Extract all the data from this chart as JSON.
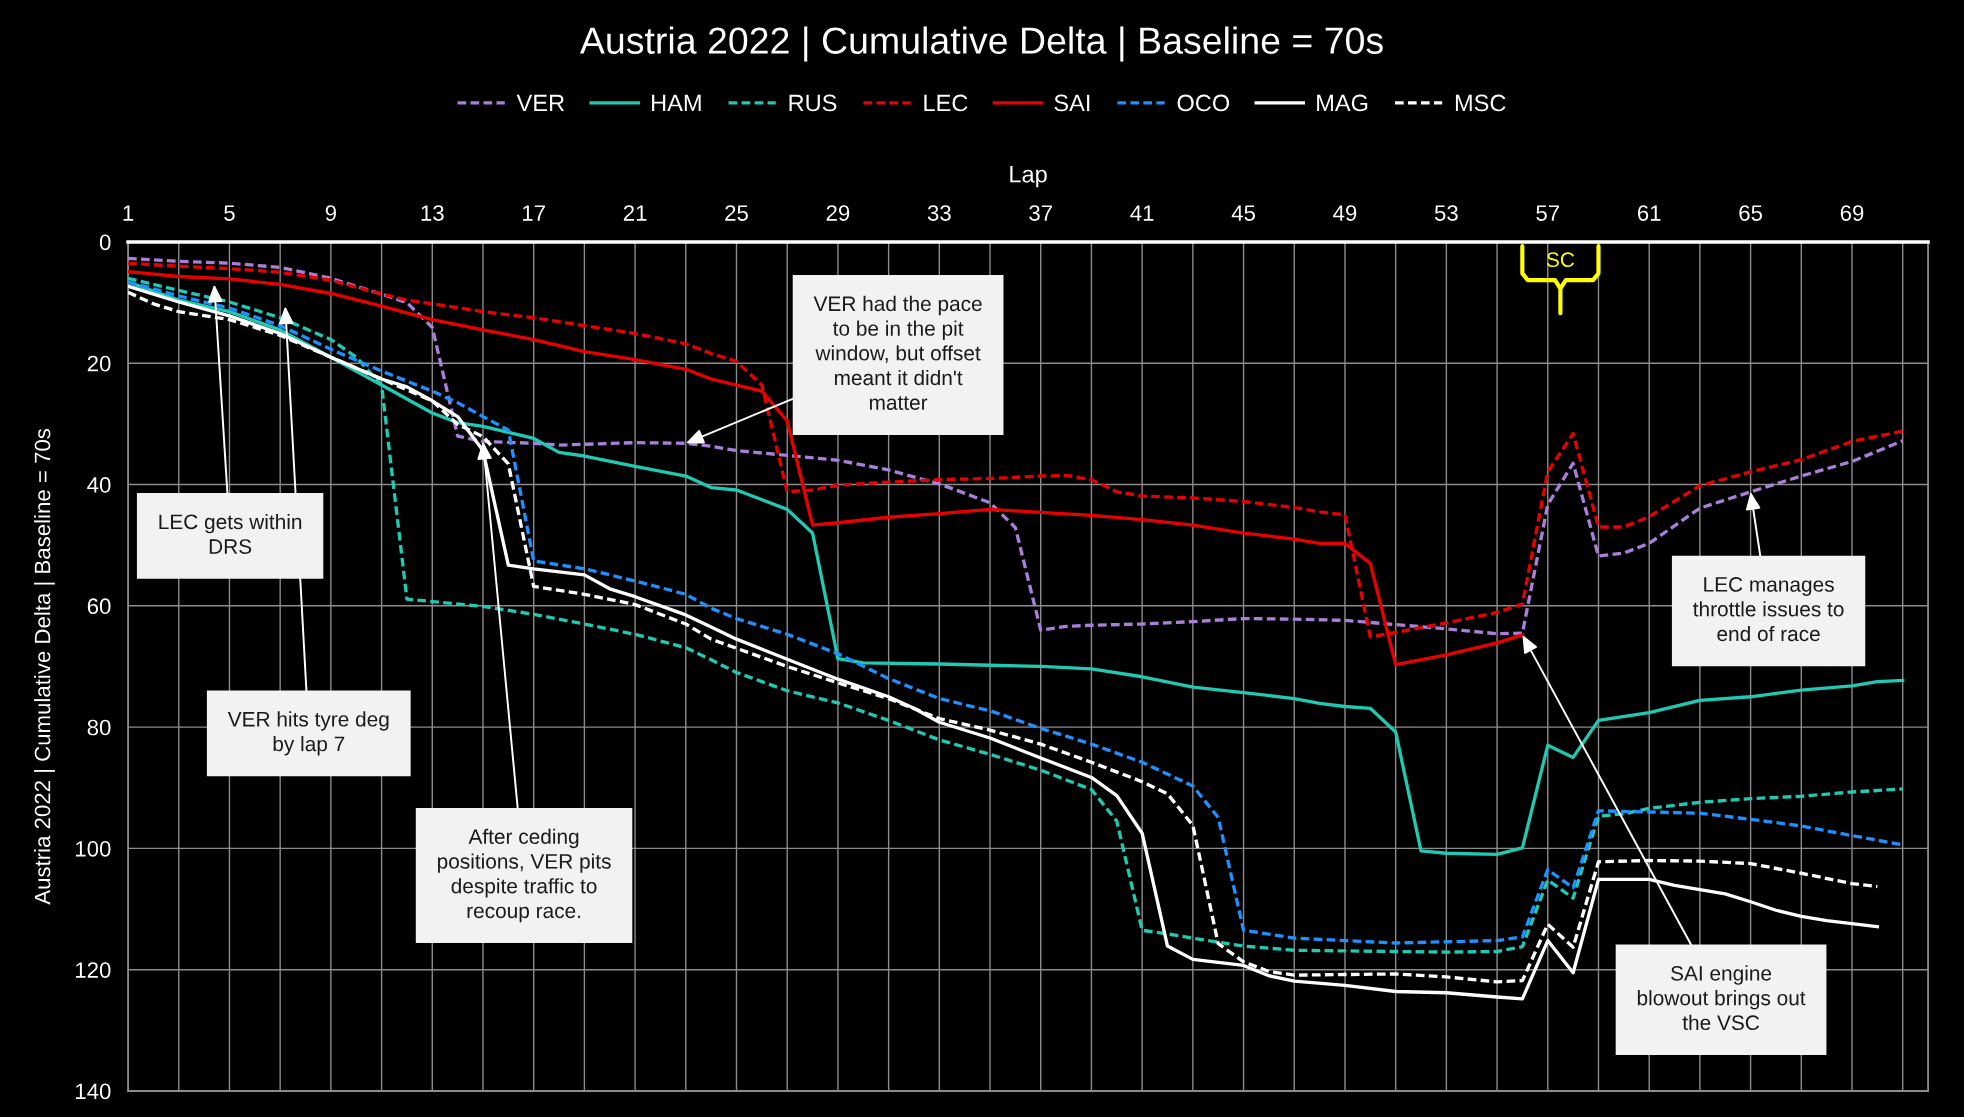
{
  "chart_data": {
    "type": "line",
    "title": "Austria 2022 | Cumulative Delta | Baseline = 70s",
    "xlabel": "Lap",
    "ylabel": "Austria 2022 | Cumulative Delta | Baseline = 70s",
    "xlim": [
      1,
      72
    ],
    "xticks": [
      1,
      {
        "value": 3,
        "label": null
      },
      5,
      {
        "value": 7,
        "label": null
      },
      9,
      {
        "value": 11,
        "label": null
      },
      13,
      {
        "value": 15,
        "label": null
      },
      17,
      {
        "value": 19,
        "label": null
      },
      21,
      {
        "value": 23,
        "label": null
      },
      25,
      {
        "value": 27,
        "label": null
      },
      29,
      {
        "value": 31,
        "label": null
      },
      33,
      {
        "value": 35,
        "label": null
      },
      37,
      {
        "value": 39,
        "label": null
      },
      41,
      {
        "value": 43,
        "label": null
      },
      45,
      {
        "value": 47,
        "label": null
      },
      49,
      {
        "value": 51,
        "label": null
      },
      53,
      {
        "value": 55,
        "label": null
      },
      57,
      {
        "value": 59,
        "label": null
      },
      61,
      {
        "value": 63,
        "label": null
      },
      65,
      {
        "value": 67,
        "label": null
      },
      69,
      {
        "value": 71,
        "label": null
      }
    ],
    "ylim": [
      140,
      0
    ],
    "yticks": [
      0,
      20,
      40,
      60,
      80,
      100,
      120,
      140
    ],
    "grid": true,
    "legend": "top",
    "series": [
      {
        "name": "VER",
        "color": "#a97fd9",
        "line_style": "dashed",
        "x": [
          1,
          3,
          5,
          7,
          9,
          11,
          12,
          13,
          14,
          15,
          17,
          18,
          21,
          23,
          24,
          25,
          27,
          29,
          31,
          33,
          35,
          36,
          37,
          38,
          39,
          41,
          43,
          45,
          47,
          49,
          51,
          53,
          55,
          56,
          57,
          58,
          59,
          60,
          61,
          63,
          65,
          67,
          69,
          71
        ],
        "values": [
          2.7,
          3.2,
          3.5,
          4.2,
          6.0,
          8.6,
          10.0,
          14.1,
          32.0,
          32.9,
          33.2,
          33.5,
          33.1,
          33.2,
          33.7,
          34.4,
          35.2,
          36.0,
          37.6,
          39.9,
          43.0,
          47.1,
          64.0,
          63.4,
          63.2,
          63.0,
          62.6,
          62.1,
          62.2,
          62.4,
          63.1,
          63.8,
          64.6,
          64.5,
          43.3,
          36.5,
          51.8,
          51.3,
          49.7,
          43.9,
          41.2,
          38.6,
          36.2,
          32.8
        ]
      },
      {
        "name": "HAM",
        "color": "#20c9b3",
        "line_style": "solid",
        "x": [
          1,
          3,
          5,
          7,
          9,
          11,
          13,
          14,
          15,
          17,
          18,
          19,
          21,
          23,
          24,
          25,
          27,
          28,
          29,
          30,
          33,
          35,
          37,
          39,
          41,
          43,
          45,
          47,
          48,
          49,
          50,
          51,
          52,
          53,
          55,
          56,
          57,
          58,
          59,
          61,
          63,
          65,
          67,
          69,
          70,
          71
        ],
        "values": [
          6.6,
          9.6,
          11.5,
          14.5,
          19.0,
          23.6,
          28.2,
          29.8,
          30.4,
          32.4,
          34.7,
          35.3,
          37.0,
          38.6,
          40.5,
          40.9,
          44.1,
          48.0,
          68.7,
          69.4,
          69.6,
          69.8,
          70.0,
          70.4,
          71.7,
          73.4,
          74.3,
          75.3,
          76.1,
          76.6,
          76.9,
          80.8,
          100.4,
          100.8,
          101.0,
          99.9,
          83.0,
          85.0,
          78.9,
          77.6,
          75.6,
          75.0,
          73.9,
          73.2,
          72.5,
          72.3
        ]
      },
      {
        "name": "RUS",
        "color": "#20c9b3",
        "line_style": "dashed",
        "x": [
          1,
          3,
          5,
          7,
          9,
          10,
          11,
          12,
          13,
          15,
          17,
          19,
          21,
          23,
          24,
          25,
          27,
          29,
          31,
          33,
          35,
          37,
          39,
          40,
          41,
          42,
          43,
          45,
          47,
          49,
          51,
          53,
          55,
          56,
          57,
          58,
          59,
          60,
          61,
          63,
          65,
          67,
          69,
          71
        ],
        "values": [
          6.0,
          8.0,
          9.9,
          12.5,
          16.1,
          19.0,
          23.6,
          58.9,
          59.3,
          60.1,
          61.4,
          63.0,
          64.7,
          66.9,
          68.9,
          71.0,
          74.0,
          76.0,
          78.9,
          82.1,
          84.5,
          87.1,
          90.3,
          95.5,
          113.5,
          114.1,
          114.8,
          116.1,
          116.8,
          116.9,
          117.0,
          117.1,
          117.0,
          116.2,
          105.2,
          108.2,
          94.7,
          94.3,
          93.4,
          92.4,
          91.8,
          91.4,
          90.7,
          90.2
        ]
      },
      {
        "name": "LEC",
        "color": "#e60000",
        "line_style": "dashed",
        "x": [
          1,
          3,
          5,
          7,
          9,
          11,
          12,
          13,
          15,
          17,
          19,
          21,
          23,
          24,
          25,
          26,
          27,
          28,
          29,
          31,
          33,
          35,
          37,
          38,
          39,
          40,
          41,
          43,
          45,
          47,
          48,
          49,
          50,
          51,
          53,
          55,
          56,
          57,
          58,
          59,
          60,
          61,
          63,
          65,
          67,
          69,
          71
        ],
        "values": [
          3.5,
          4.0,
          4.4,
          5.0,
          6.3,
          8.6,
          9.6,
          10.2,
          11.5,
          12.5,
          13.8,
          15.1,
          16.8,
          18.4,
          19.7,
          23.6,
          41.2,
          40.9,
          40.1,
          39.6,
          39.2,
          39.0,
          38.6,
          38.5,
          39.2,
          41.2,
          41.9,
          42.2,
          42.8,
          43.8,
          44.5,
          45.0,
          65.1,
          64.4,
          62.8,
          61.1,
          59.7,
          37.9,
          31.6,
          47.0,
          47.0,
          45.3,
          40.2,
          37.9,
          35.9,
          32.9,
          31.2
        ]
      },
      {
        "name": "SAI",
        "color": "#e60000",
        "line_style": "solid",
        "x": [
          1,
          3,
          5,
          7,
          9,
          11,
          13,
          15,
          17,
          19,
          21,
          23,
          24,
          25,
          26,
          27,
          28,
          29,
          31,
          33,
          35,
          37,
          39,
          41,
          43,
          45,
          47,
          48,
          49,
          50,
          51,
          53,
          55,
          56
        ],
        "values": [
          4.9,
          5.7,
          6.1,
          7.0,
          8.5,
          10.6,
          12.8,
          14.5,
          16.1,
          18.1,
          19.4,
          21.0,
          22.6,
          23.6,
          24.6,
          29.5,
          46.7,
          46.3,
          45.4,
          44.8,
          44.1,
          44.6,
          45.1,
          45.8,
          46.7,
          48.0,
          49.0,
          49.7,
          49.7,
          53.0,
          69.7,
          68.1,
          66.1,
          64.8
        ]
      },
      {
        "name": "OCO",
        "color": "#1e90ff",
        "line_style": "dashed",
        "x": [
          1,
          3,
          5,
          7,
          9,
          11,
          13,
          14,
          15,
          16,
          17,
          19,
          21,
          23,
          24,
          25,
          27,
          29,
          31,
          33,
          35,
          37,
          39,
          41,
          43,
          44,
          45,
          47,
          49,
          51,
          53,
          55,
          56,
          57,
          58,
          59,
          61,
          63,
          65,
          67,
          69,
          71
        ],
        "values": [
          6.6,
          8.9,
          10.9,
          13.8,
          17.7,
          21.3,
          24.6,
          26.5,
          28.8,
          31.0,
          52.6,
          53.9,
          55.9,
          58.1,
          60.4,
          62.1,
          64.7,
          67.9,
          72.0,
          75.3,
          77.3,
          80.2,
          82.8,
          85.8,
          89.7,
          94.9,
          113.5,
          114.8,
          115.2,
          115.6,
          115.4,
          115.2,
          114.6,
          103.5,
          106.5,
          93.8,
          94.0,
          94.2,
          95.2,
          96.3,
          97.9,
          99.4
        ]
      },
      {
        "name": "MAG",
        "color": "#ffffff",
        "line_style": "solid",
        "x": [
          1,
          3,
          5,
          7,
          9,
          11,
          12,
          13,
          14,
          15,
          16,
          17,
          19,
          20,
          21,
          23,
          24,
          25,
          27,
          29,
          31,
          32,
          33,
          35,
          37,
          39,
          40,
          41,
          42,
          43,
          45,
          46,
          47,
          49,
          51,
          53,
          55,
          56,
          57,
          58,
          59,
          61,
          62,
          64,
          65,
          66,
          67,
          68,
          70
        ],
        "values": [
          7.3,
          9.9,
          12.2,
          15.1,
          19.0,
          22.6,
          23.9,
          26.2,
          28.8,
          34.4,
          53.3,
          53.9,
          54.9,
          57.2,
          58.5,
          61.5,
          63.5,
          65.5,
          68.8,
          72.1,
          75.0,
          76.9,
          79.2,
          81.8,
          85.1,
          88.3,
          91.3,
          97.5,
          116.1,
          118.3,
          119.3,
          121.0,
          121.9,
          122.6,
          123.6,
          123.8,
          124.5,
          124.8,
          115.2,
          120.5,
          105.1,
          105.1,
          106.1,
          107.5,
          108.8,
          110.2,
          111.2,
          111.9,
          112.9
        ]
      },
      {
        "name": "MSC",
        "color": "#ffffff",
        "line_style": "dashed",
        "x": [
          1,
          2,
          3,
          5,
          7,
          9,
          11,
          13,
          14,
          15,
          16,
          17,
          19,
          21,
          23,
          24,
          25,
          27,
          29,
          31,
          33,
          35,
          37,
          39,
          41,
          42,
          43,
          44,
          45,
          46,
          47,
          49,
          51,
          53,
          55,
          56,
          57,
          58,
          59,
          61,
          63,
          65,
          67,
          69,
          70
        ],
        "values": [
          8.3,
          10.2,
          11.5,
          12.8,
          15.4,
          19.0,
          22.6,
          26.2,
          30.1,
          32.1,
          36.6,
          56.8,
          58.1,
          59.8,
          63.0,
          65.5,
          67.0,
          70.0,
          72.7,
          75.3,
          78.6,
          80.5,
          82.8,
          85.8,
          89.0,
          91.0,
          96.2,
          115.7,
          118.7,
          120.3,
          120.9,
          120.8,
          120.7,
          121.2,
          122.0,
          121.8,
          112.5,
          116.3,
          102.2,
          102.0,
          102.1,
          102.5,
          104.1,
          105.8,
          106.3
        ]
      }
    ],
    "annotations": [
      {
        "text": "LEC gets within\nDRS",
        "x": 4.4,
        "y": 7.0
      },
      {
        "text": "VER hits tyre deg\nby lap 7",
        "x": 7.2,
        "y": 10.6
      },
      {
        "text": "After ceding\npositions, VER pits\ndespite traffic to\nrecoup race.",
        "x": 15,
        "y": 32.9
      },
      {
        "text": "VER had the pace\nto be in the pit\nwindow, but offset\nmeant it didn't\nmatter",
        "x": 23,
        "y": 33.2
      },
      {
        "text": "LEC manages\nthrottle issues to\nend of race",
        "x": 65,
        "y": 41.2
      },
      {
        "text": "SAI engine\nblowout brings out\nthe VSC",
        "x": 56,
        "y": 64.8
      },
      "SC"
    ]
  }
}
